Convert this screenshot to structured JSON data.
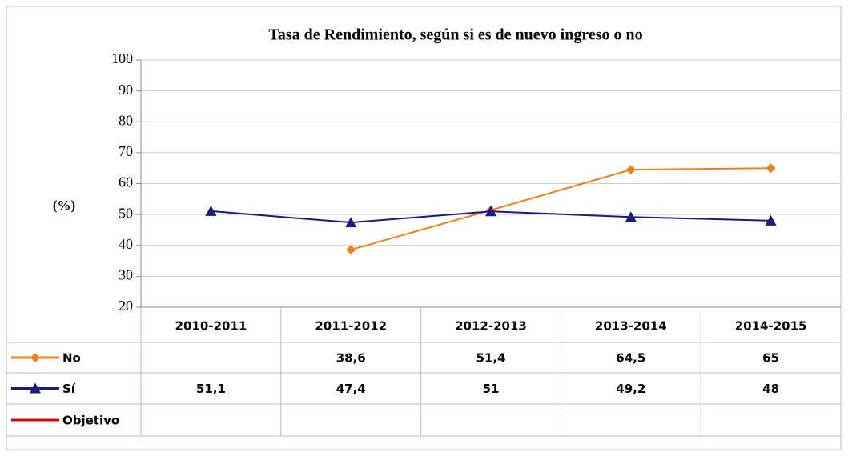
{
  "chart_data": {
    "type": "line",
    "title": "Tasa de Rendimiento, según si es de nuevo ingreso o no",
    "y_label": "(%)",
    "categories": [
      "2010-2011",
      "2011-2012",
      "2012-2013",
      "2013-2014",
      "2014-2015"
    ],
    "series": [
      {
        "name": "No",
        "color": "#f07f1d",
        "marker": "diamond",
        "values": [
          null,
          38.6,
          51.4,
          64.5,
          65
        ],
        "value_labels": [
          null,
          "38,6",
          "51,4",
          "64,5",
          "65"
        ]
      },
      {
        "name": "Sí",
        "color": "#1a1a80",
        "marker": "triangle",
        "values": [
          51.1,
          47.4,
          51,
          49.2,
          48
        ],
        "value_labels": [
          "51,1",
          "47,4",
          "51",
          "49,2",
          "48"
        ]
      },
      {
        "name": "Objetivo",
        "color": "#e00000",
        "marker": "none",
        "values": [
          null,
          null,
          null,
          null,
          null
        ]
      }
    ],
    "ylim": [
      20,
      100
    ],
    "yticks": [
      20,
      30,
      40,
      50,
      60,
      70,
      80,
      90,
      100
    ],
    "grid": true,
    "data_table": true
  }
}
